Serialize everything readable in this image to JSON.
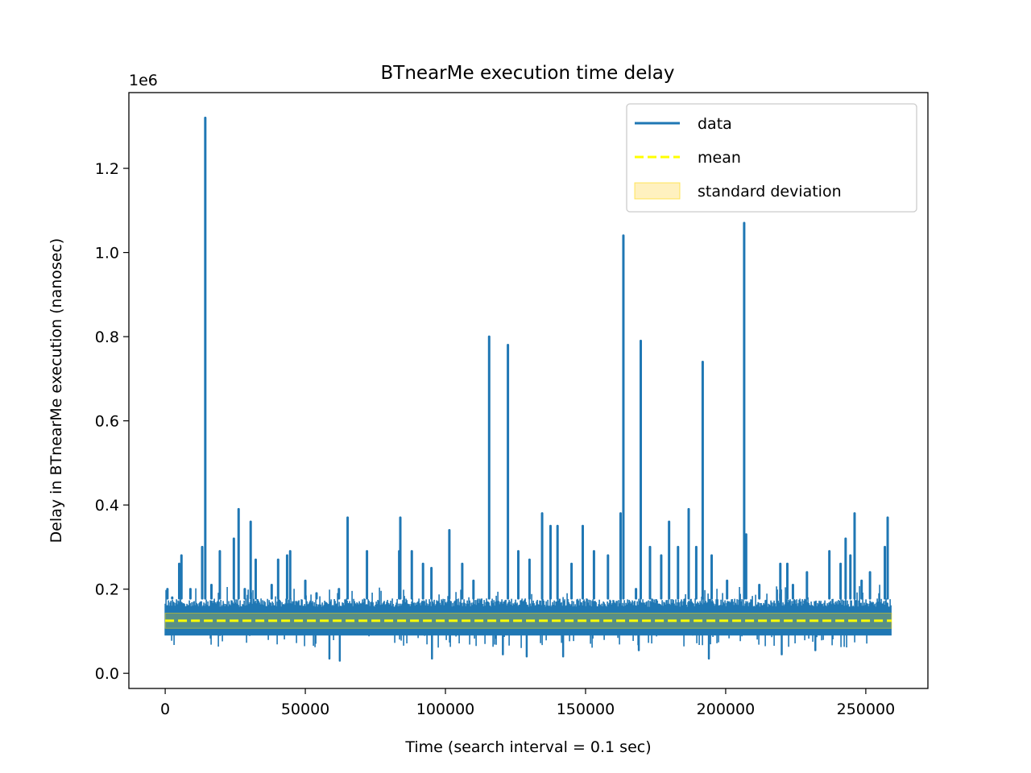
{
  "chart_data": {
    "type": "line",
    "title": "BTnearMe execution time delay",
    "xlabel": "Time (search interval = 0.1 sec)",
    "ylabel": "Delay in BTnearMe execution (nanosec)",
    "y_offset_label": "1e6",
    "xlim": [
      -12960,
      272160
    ],
    "ylim": [
      -0.036,
      1.38
    ],
    "y_unit_multiplier": 1000000,
    "x_ticks": [
      {
        "value": 0,
        "label": "0"
      },
      {
        "value": 50000,
        "label": "50000"
      },
      {
        "value": 100000,
        "label": "100000"
      },
      {
        "value": 150000,
        "label": "150000"
      },
      {
        "value": 200000,
        "label": "200000"
      },
      {
        "value": 250000,
        "label": "250000"
      }
    ],
    "y_ticks": [
      {
        "value": 0.0,
        "label": "0.0"
      },
      {
        "value": 0.2,
        "label": "0.2"
      },
      {
        "value": 0.4,
        "label": "0.4"
      },
      {
        "value": 0.6,
        "label": "0.6"
      },
      {
        "value": 0.8,
        "label": "0.8"
      },
      {
        "value": 1.0,
        "label": "1.0"
      },
      {
        "value": 1.2,
        "label": "1.2"
      }
    ],
    "mean": 0.125,
    "std_band": [
      0.107,
      0.143
    ],
    "baseline": {
      "low": 0.09,
      "high": 0.178,
      "min_dip": 0.06
    },
    "x_end": 259200,
    "spikes": [
      [
        800,
        0.2
      ],
      [
        2500,
        0.18
      ],
      [
        5000,
        0.26
      ],
      [
        5800,
        0.28
      ],
      [
        9000,
        0.2
      ],
      [
        13200,
        0.3
      ],
      [
        14300,
        1.32
      ],
      [
        16500,
        0.21
      ],
      [
        19500,
        0.29
      ],
      [
        24500,
        0.32
      ],
      [
        26200,
        0.39
      ],
      [
        28400,
        0.2
      ],
      [
        30500,
        0.36
      ],
      [
        32300,
        0.27
      ],
      [
        38000,
        0.21
      ],
      [
        40300,
        0.27
      ],
      [
        43500,
        0.28
      ],
      [
        44600,
        0.29
      ],
      [
        50000,
        0.22
      ],
      [
        54000,
        0.19
      ],
      [
        62000,
        0.2
      ],
      [
        65100,
        0.37
      ],
      [
        72000,
        0.29
      ],
      [
        83500,
        0.29
      ],
      [
        83900,
        0.37
      ],
      [
        88000,
        0.29
      ],
      [
        92000,
        0.26
      ],
      [
        95000,
        0.25
      ],
      [
        101400,
        0.34
      ],
      [
        106000,
        0.26
      ],
      [
        110000,
        0.22
      ],
      [
        115600,
        0.8
      ],
      [
        122300,
        0.78
      ],
      [
        126000,
        0.29
      ],
      [
        130000,
        0.27
      ],
      [
        134500,
        0.38
      ],
      [
        137500,
        0.35
      ],
      [
        140000,
        0.35
      ],
      [
        145000,
        0.26
      ],
      [
        149000,
        0.35
      ],
      [
        153000,
        0.29
      ],
      [
        158000,
        0.28
      ],
      [
        162500,
        0.38
      ],
      [
        163500,
        1.04
      ],
      [
        168000,
        0.2
      ],
      [
        169700,
        0.79
      ],
      [
        173000,
        0.3
      ],
      [
        177000,
        0.28
      ],
      [
        179800,
        0.36
      ],
      [
        183000,
        0.3
      ],
      [
        186800,
        0.39
      ],
      [
        189500,
        0.3
      ],
      [
        191800,
        0.74
      ],
      [
        195000,
        0.28
      ],
      [
        200500,
        0.22
      ],
      [
        206600,
        1.07
      ],
      [
        207300,
        0.33
      ],
      [
        212000,
        0.21
      ],
      [
        219500,
        0.26
      ],
      [
        222000,
        0.26
      ],
      [
        224000,
        0.21
      ],
      [
        229000,
        0.24
      ],
      [
        237000,
        0.29
      ],
      [
        241000,
        0.26
      ],
      [
        242800,
        0.32
      ],
      [
        244500,
        0.28
      ],
      [
        246000,
        0.38
      ],
      [
        248500,
        0.22
      ],
      [
        251500,
        0.24
      ],
      [
        256800,
        0.3
      ],
      [
        257800,
        0.37
      ]
    ],
    "dips": [
      [
        58600,
        0.035
      ],
      [
        62300,
        0.03
      ],
      [
        95200,
        0.035
      ],
      [
        120500,
        0.045
      ],
      [
        129000,
        0.04
      ],
      [
        142000,
        0.04
      ],
      [
        169000,
        0.055
      ],
      [
        194000,
        0.035
      ],
      [
        220000,
        0.045
      ],
      [
        232000,
        0.055
      ]
    ],
    "legend": {
      "placement": "upper right",
      "entries": [
        {
          "label": "data",
          "style": "solid-line",
          "color": "#1f77b4"
        },
        {
          "label": "mean",
          "style": "dashed-line",
          "color": "#ffff00"
        },
        {
          "label": "standard deviation",
          "style": "patch",
          "color": "#ffe170"
        }
      ]
    },
    "colors": {
      "data": "#1f77b4",
      "mean": "#ffff00",
      "std_fill": "#ffd700",
      "axes": "#000000"
    }
  }
}
